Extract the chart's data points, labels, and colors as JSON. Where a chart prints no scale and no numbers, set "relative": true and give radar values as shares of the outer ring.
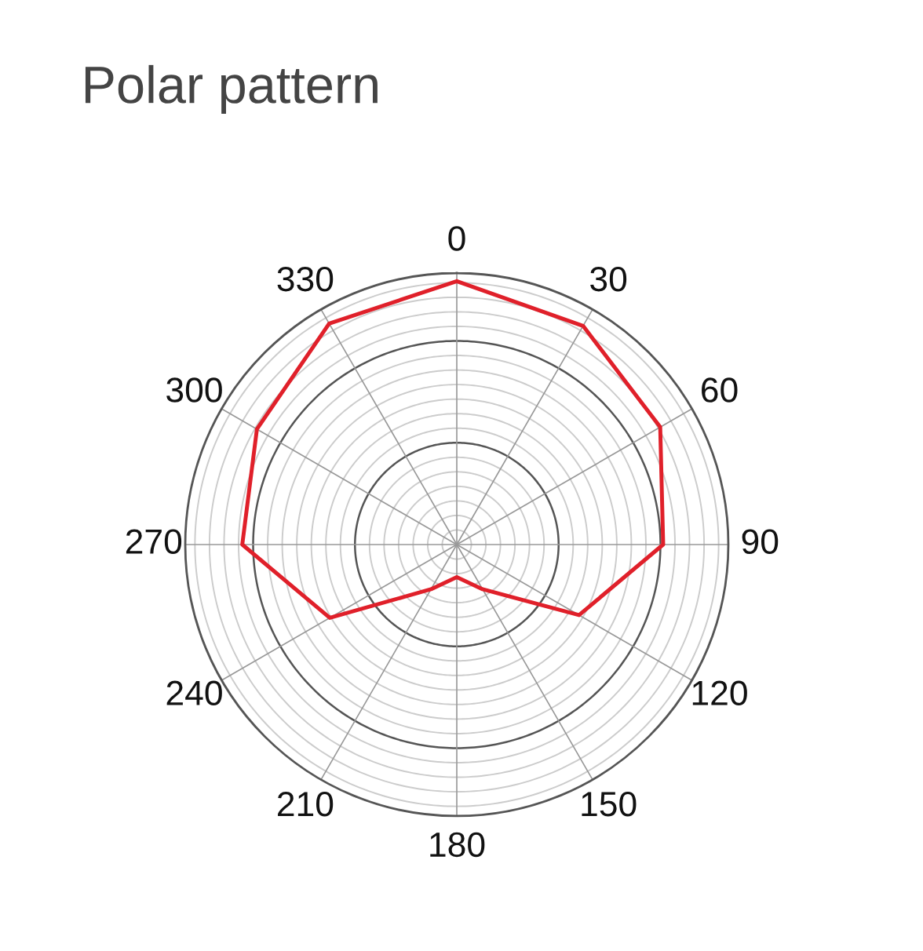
{
  "chart_data": {
    "type": "radar",
    "title": "Polar pattern",
    "relative": true,
    "grid": true,
    "categories": [
      "0",
      "30",
      "60",
      "90",
      "120",
      "150",
      "180",
      "210",
      "240",
      "270",
      "300",
      "330"
    ],
    "series": [
      {
        "color": "#e0202a",
        "line_style": "solid",
        "marker": "none",
        "values": [
          0.97,
          0.93,
          0.865,
          0.76,
          0.52,
          0.19,
          0.12,
          0.19,
          0.54,
          0.79,
          0.85,
          0.94
        ]
      }
    ]
  }
}
